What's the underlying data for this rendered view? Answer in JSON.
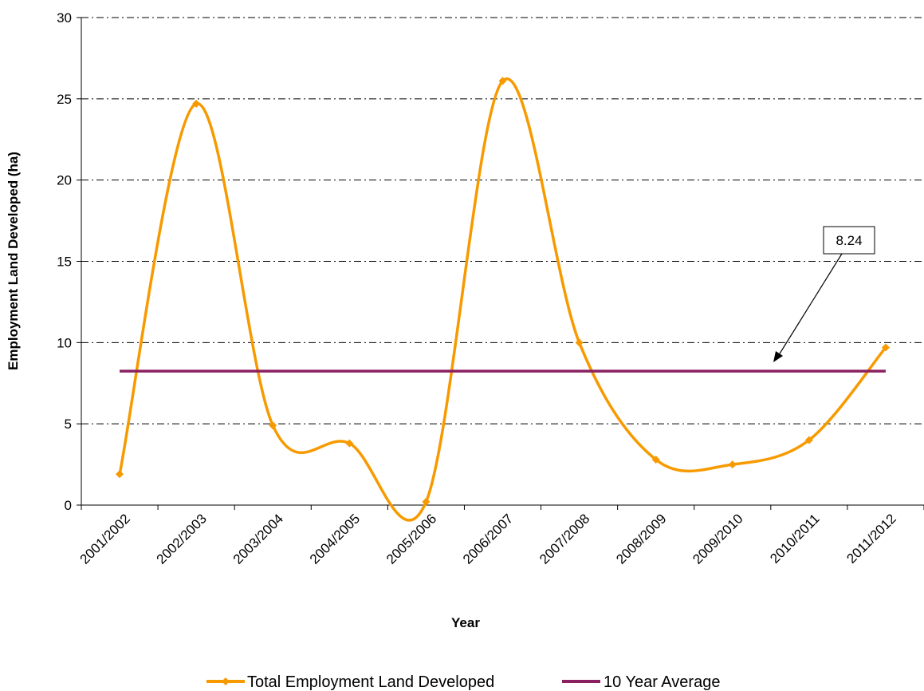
{
  "chart_data": {
    "type": "line",
    "xlabel": "Year",
    "ylabel": "Employment Land Developed (ha)",
    "ylim": [
      0,
      30
    ],
    "yticks": [
      0,
      5,
      10,
      15,
      20,
      25,
      30
    ],
    "grid": true,
    "legend_position": "bottom",
    "categories": [
      "2001/2002",
      "2002/2003",
      "2003/2004",
      "2004/2005",
      "2005/2006",
      "2006/2007",
      "2007/2008",
      "2008/2009",
      "2009/2010",
      "2010/2011",
      "2011/2012"
    ],
    "series": [
      {
        "name": "Total Employment Land Developed",
        "color": "#f79a00",
        "smooth": true,
        "marker": "diamond",
        "values": [
          1.9,
          24.7,
          4.9,
          3.8,
          0.2,
          26.1,
          10.0,
          2.8,
          2.5,
          4.0,
          9.7
        ]
      },
      {
        "name": "10 Year Average",
        "color": "#8b2060",
        "smooth": false,
        "marker": "none",
        "values": [
          8.24,
          8.24,
          8.24,
          8.24,
          8.24,
          8.24,
          8.24,
          8.24,
          8.24,
          8.24,
          8.24
        ]
      }
    ],
    "annotation": {
      "text": "8.24",
      "points_to_value": 8.24
    }
  }
}
